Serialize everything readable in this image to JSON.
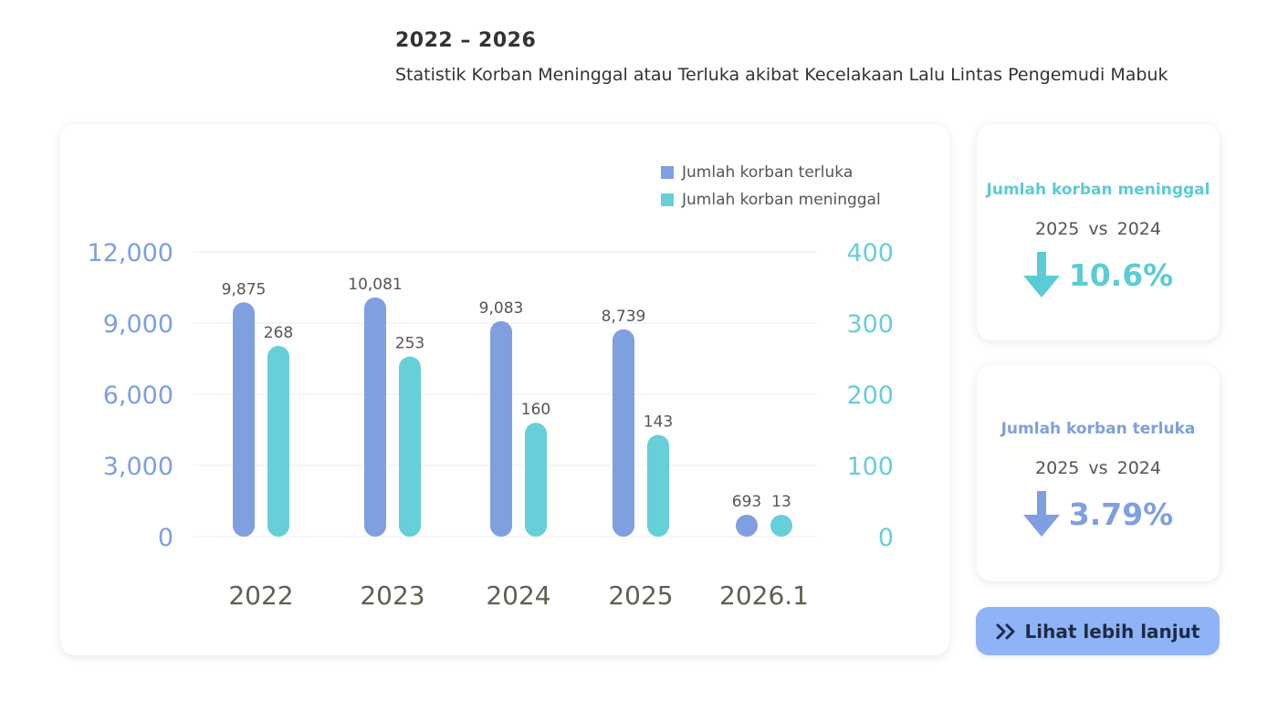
{
  "header": {
    "title": "2022 – 2026",
    "subtitle": "Statistik Korban Meninggal atau Terluka akibat Kecelakaan Lalu Lintas Pengemudi Mabuk"
  },
  "chart_data": {
    "type": "bar",
    "categories": [
      "2022",
      "2023",
      "2024",
      "2025",
      "2026.1"
    ],
    "series": [
      {
        "name": "Jumlah korban terluka",
        "axis": "left",
        "color": "#7f9fe0",
        "values": [
          9875,
          10081,
          9083,
          8739,
          693
        ],
        "labels": [
          "9,875",
          "10,081",
          "9,083",
          "8,739",
          "693"
        ]
      },
      {
        "name": "Jumlah korban meninggal",
        "axis": "right",
        "color": "#66cfd9",
        "values": [
          268,
          253,
          160,
          143,
          13
        ],
        "labels": [
          "268",
          "253",
          "160",
          "143",
          "13"
        ]
      }
    ],
    "y_left": {
      "min": 0,
      "max": 12000,
      "ticks": [
        "0",
        "3,000",
        "6,000",
        "9,000",
        "12,000"
      ],
      "color": "#7f9fe0"
    },
    "y_right": {
      "min": 0,
      "max": 400,
      "ticks": [
        "0",
        "100",
        "200",
        "300",
        "400"
      ],
      "color": "#66cfd9"
    },
    "grid": true,
    "legend_position": "top-right"
  },
  "stats": {
    "deaths": {
      "label": "Jumlah korban meninggal",
      "compare": "2025 vs 2024",
      "change": "10.6%",
      "direction": "down-arrow-icon",
      "color": "#5bcbd6"
    },
    "injuries": {
      "label": "Jumlah korban terluka",
      "compare": "2025 vs 2024",
      "change": "3.79%",
      "direction": "down-arrow-icon",
      "color": "#7f9fe0"
    }
  },
  "more_button": {
    "label": "Lihat lebih lanjut",
    "icon": "double-chevron-right-icon"
  }
}
